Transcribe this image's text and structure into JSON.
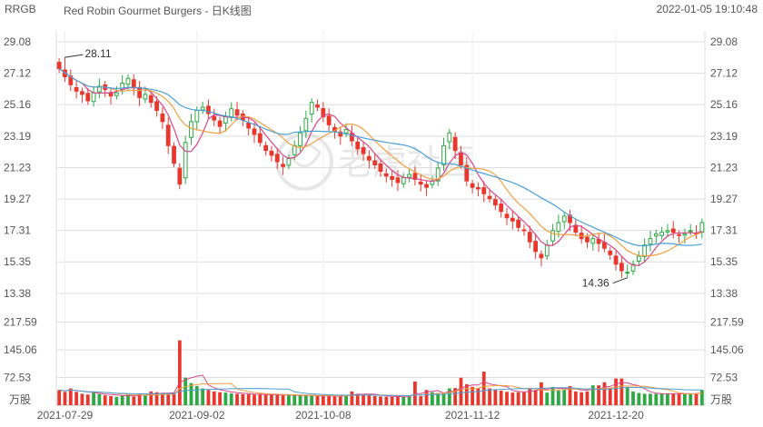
{
  "header": {
    "ticker": "RRGB",
    "name": "Red Robin Gourmet Burgers - 日K线图",
    "timestamp": "2022-01-05 19:10:48"
  },
  "watermark": "老虎社區",
  "colors": {
    "up": "#2ea843",
    "down": "#e8382e",
    "ma5": "#d9458a",
    "ma10": "#f0a040",
    "ma20": "#4aa0d8",
    "grid": "#dddddd",
    "axis_text": "#555555"
  },
  "chart_data": [
    {
      "type": "candlestick",
      "title": "",
      "price_ticks": [
        "29.08",
        "27.12",
        "25.16",
        "23.19",
        "21.23",
        "19.27",
        "17.31",
        "15.35",
        "13.38"
      ],
      "ylim": [
        13.38,
        29.08
      ],
      "annotations": [
        {
          "label": "28.11",
          "kind": "high",
          "value": 28.11,
          "date_index": 1
        },
        {
          "label": "14.36",
          "kind": "low",
          "value": 14.36,
          "date_index": 99
        }
      ],
      "x_labels": [
        {
          "label": "2021-07-29",
          "index": 1
        },
        {
          "label": "2021-09-02",
          "index": 24
        },
        {
          "label": "2021-10-08",
          "index": 46
        },
        {
          "label": "2021-11-12",
          "index": 72
        },
        {
          "label": "2021-12-20",
          "index": 97
        }
      ],
      "closes": [
        27.4,
        26.9,
        26.4,
        26.0,
        25.8,
        25.4,
        25.9,
        26.3,
        26.1,
        25.7,
        25.9,
        26.5,
        26.8,
        26.2,
        25.6,
        25.8,
        25.3,
        24.8,
        24.1,
        22.6,
        21.5,
        20.2,
        22.8,
        24.1,
        24.8,
        25.0,
        24.6,
        24.2,
        23.8,
        24.4,
        24.9,
        24.5,
        24.2,
        23.7,
        23.3,
        22.8,
        22.3,
        22.0,
        21.6,
        21.3,
        21.8,
        22.6,
        23.4,
        24.3,
        25.3,
        25.0,
        24.4,
        23.9,
        23.5,
        23.2,
        23.6,
        22.9,
        22.4,
        22.1,
        21.7,
        21.4,
        21.0,
        20.7,
        20.5,
        20.3,
        20.6,
        20.8,
        20.5,
        20.2,
        20.0,
        20.4,
        21.2,
        22.6,
        23.4,
        22.3,
        21.4,
        20.4,
        20.0,
        19.9,
        19.6,
        19.3,
        18.9,
        18.5,
        18.1,
        17.9,
        17.5,
        17.3,
        16.6,
        16.0,
        15.6,
        16.4,
        17.3,
        17.8,
        18.2,
        17.8,
        17.2,
        16.8,
        16.6,
        16.8,
        16.5,
        16.2,
        15.8,
        15.2,
        14.8,
        14.7,
        15.2,
        15.7,
        16.4,
        16.8,
        17.1,
        17.2,
        17.3,
        17.2,
        17.0,
        17.1,
        17.3,
        17.1,
        17.8
      ],
      "series": [
        {
          "name": "MA5",
          "key": "ma5"
        },
        {
          "name": "MA10",
          "key": "ma10"
        },
        {
          "name": "MA20",
          "key": "ma20"
        }
      ]
    },
    {
      "type": "bar",
      "title": "",
      "unit_label": "万股",
      "volume_ticks": [
        "217.59",
        "145.06",
        "72.53"
      ],
      "ylim": [
        0,
        250
      ],
      "values": [
        40,
        35,
        44,
        35,
        30,
        28,
        33,
        29,
        26,
        24,
        22,
        25,
        27,
        23,
        30,
        26,
        36,
        34,
        32,
        30,
        30,
        170,
        72,
        58,
        50,
        44,
        40,
        36,
        34,
        33,
        31,
        30,
        29,
        29,
        28,
        28,
        27,
        27,
        27,
        26,
        26,
        26,
        25,
        25,
        25,
        24,
        24,
        24,
        23,
        23,
        27,
        36,
        30,
        28,
        26,
        24,
        23,
        22,
        22,
        22,
        22,
        23,
        62,
        24,
        40,
        34,
        32,
        30,
        44,
        45,
        72,
        55,
        48,
        44,
        88,
        44,
        40,
        38,
        35,
        33,
        34,
        34,
        45,
        40,
        60,
        33,
        48,
        38,
        42,
        50,
        36,
        34,
        36,
        52,
        52,
        60,
        45,
        70,
        70,
        48,
        36,
        32,
        30,
        30,
        30,
        30,
        30,
        30,
        30,
        30,
        30,
        31,
        40
      ]
    }
  ]
}
